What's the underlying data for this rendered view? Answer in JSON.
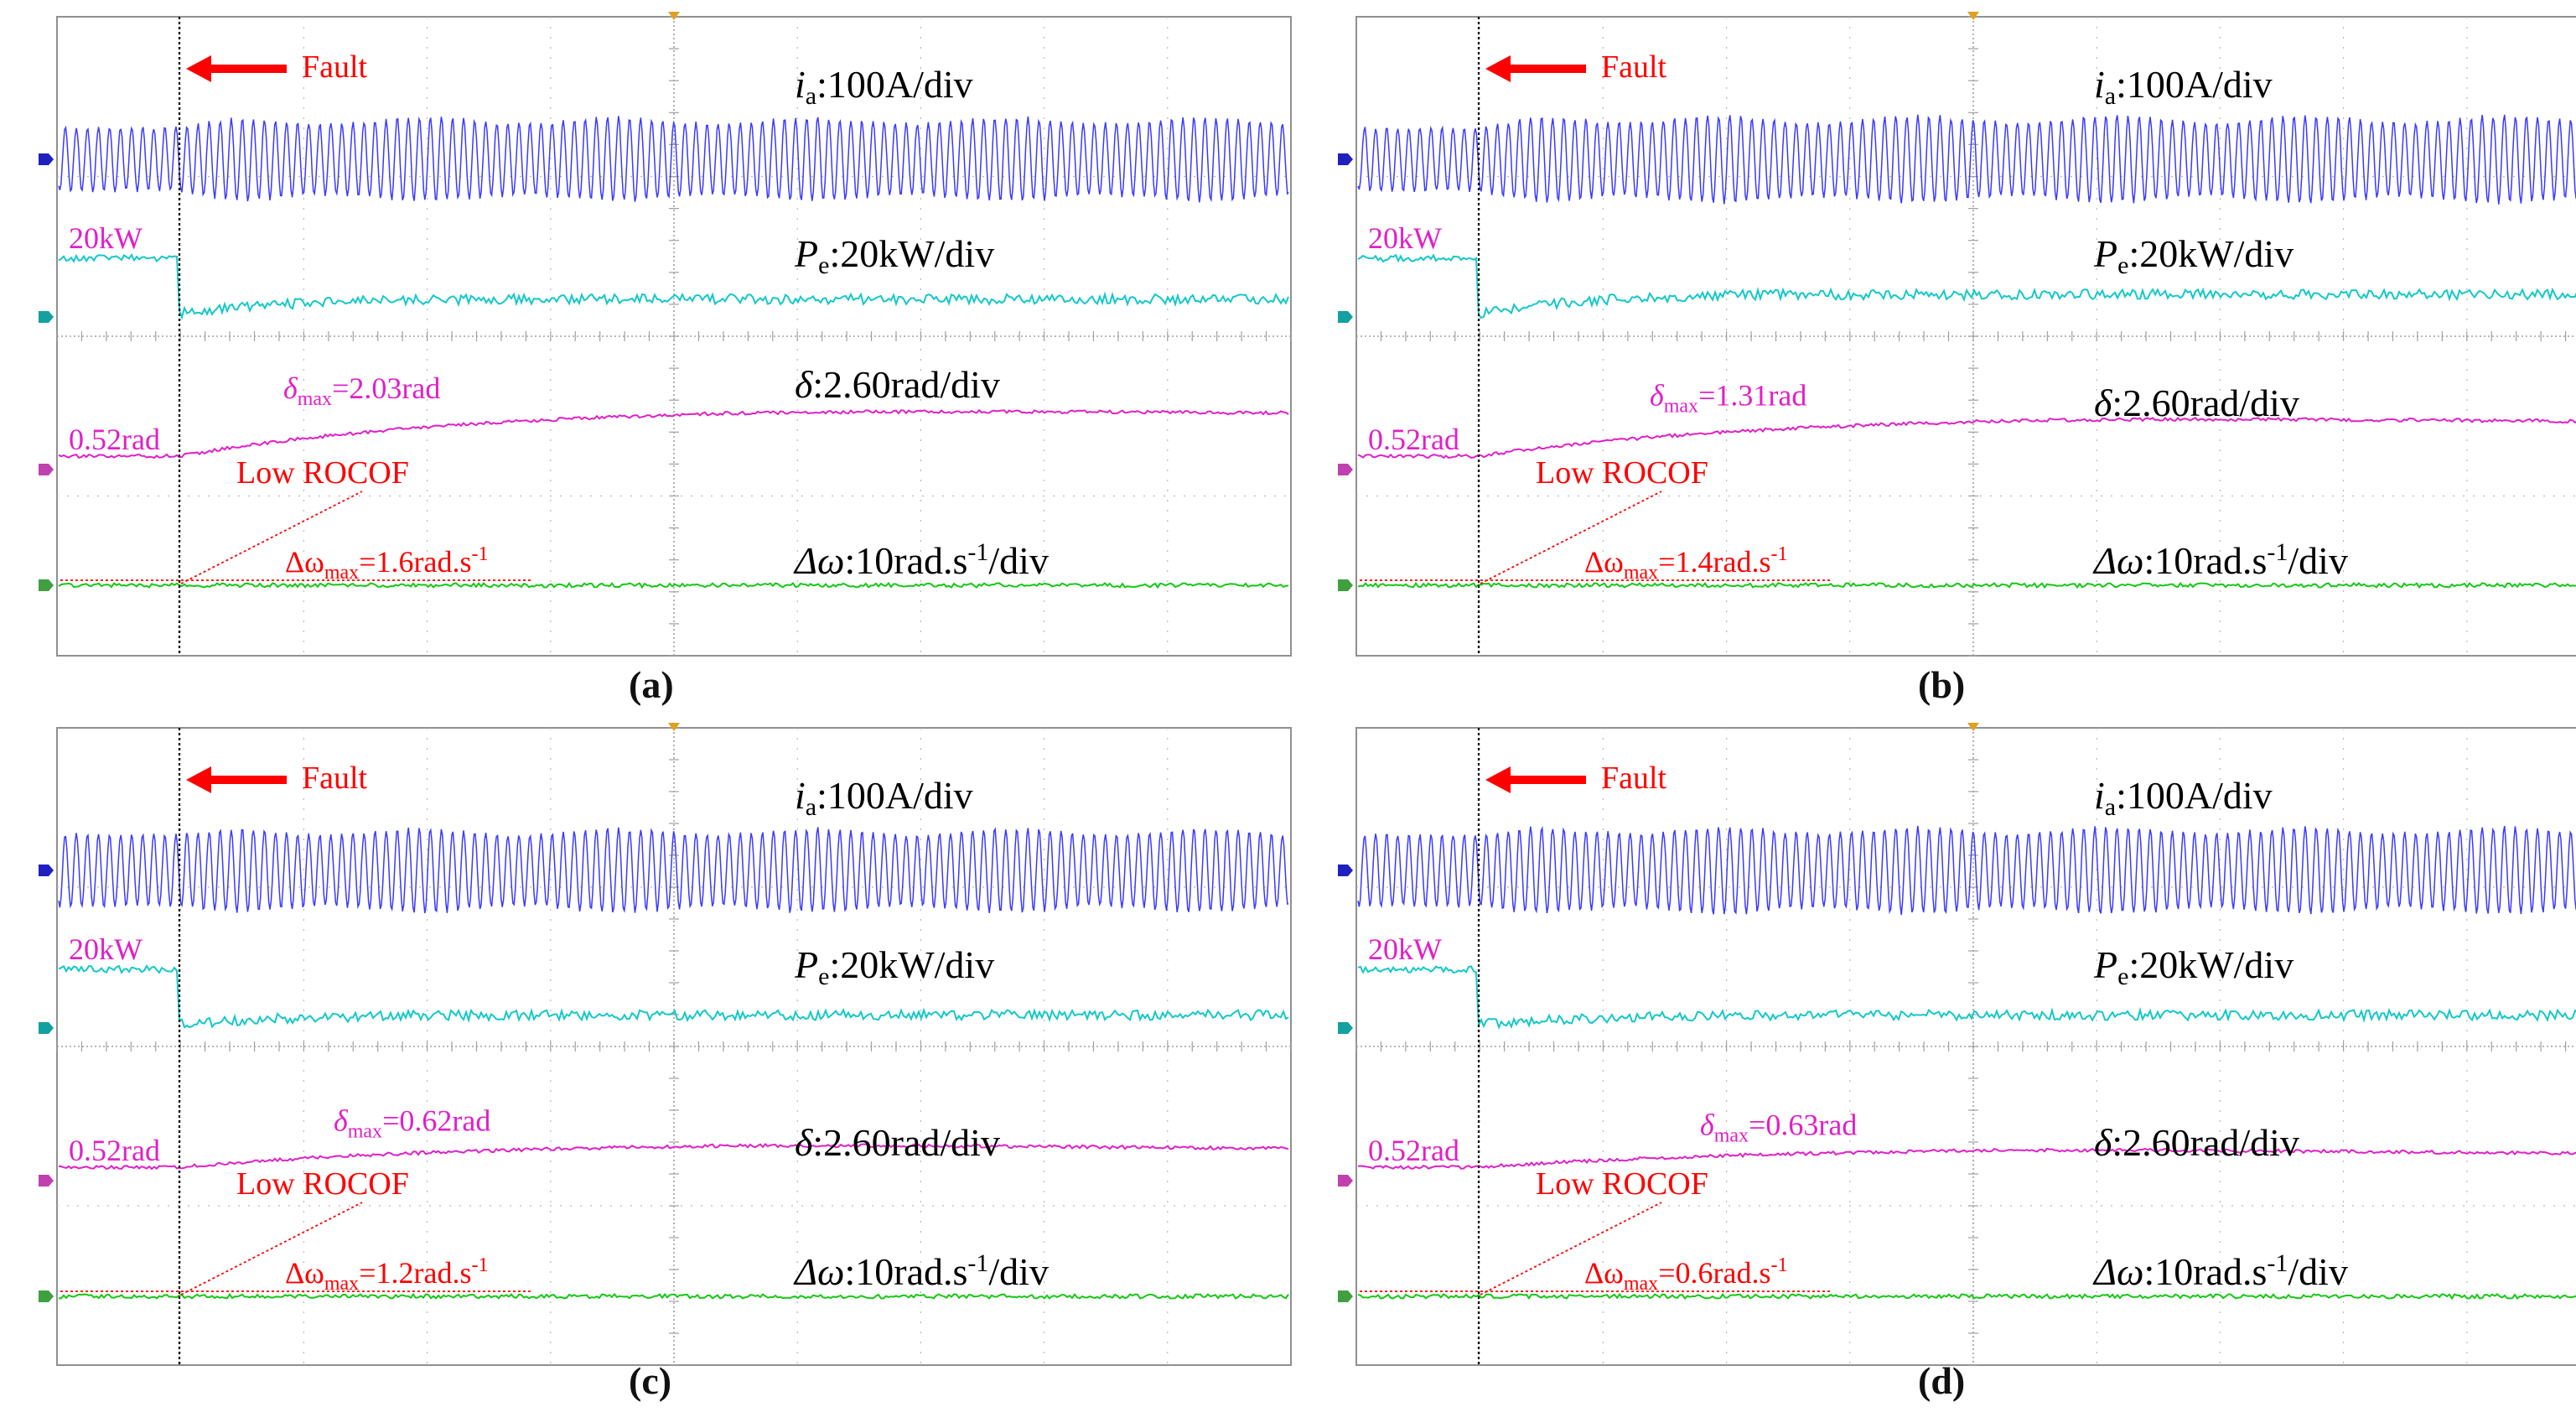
{
  "figure": {
    "fault_label": "Fault",
    "low_rocof_label": "Low ROCOF",
    "ia": {
      "sym": "i",
      "sub": "a",
      "txt": ":100A/div"
    },
    "pe": {
      "sym": "P",
      "sub": "e",
      "txt": ":20kW/div"
    },
    "delta": {
      "sym": "δ",
      "txt": ":2.60rad/div"
    },
    "omega": {
      "sym": "Δω",
      "txt1": ":10rad.s",
      "sup": "-1",
      "txt2": "/div"
    },
    "pe_init": "20kW",
    "delta_init": "0.52rad",
    "dmax_prefix": "δ",
    "dmax_sub": "max",
    "wmax_prefix": "Δω",
    "wmax_sub": "max",
    "wmax_unit": "rad.s",
    "wmax_sup": "-1"
  },
  "colors": {
    "ia": "#3a3aff",
    "pe": "#14c8c8",
    "delta": "#e020c8",
    "omega": "#14c814",
    "annotation": "#ff0000",
    "grid": "#b8b8b8",
    "trigger": "#e0a020"
  },
  "chart_data": [
    {
      "type": "line",
      "panel": "a",
      "caption": "(a)",
      "dmax_value": "=2.03rad",
      "wmax_value": "=1.6rad.s",
      "traces": {
        "pe_pre": 1.0,
        "pe_post_dip": 0.0,
        "pe_post": 0.2,
        "delta_pre": 0.0,
        "delta_peak": 0.2,
        "delta_rise_end": 0.3,
        "ia_pre_amp": 0.35,
        "ia_post_amp": 0.6
      }
    },
    {
      "type": "line",
      "panel": "b",
      "caption": "(b)",
      "dmax_value": "=1.31rad",
      "wmax_value": "=1.4rad.s",
      "traces": {
        "pe_pre": 1.0,
        "pe_post_dip": 0.0,
        "pe_post": 0.3,
        "delta_pre": 0.0,
        "delta_peak": 0.16,
        "delta_rise_end": 0.25,
        "ia_pre_amp": 0.35,
        "ia_post_amp": 0.65
      }
    },
    {
      "type": "line",
      "panel": "c",
      "caption": "(c)",
      "dmax_value": "=0.62rad",
      "wmax_value": "=1.2rad.s",
      "traces": {
        "pe_pre": 1.0,
        "pe_post_dip": 0.0,
        "pe_post": 0.1,
        "delta_pre": 0.0,
        "delta_peak": 0.05,
        "delta_rise_end": 0.15,
        "ia_pre_amp": 0.5,
        "ia_post_amp": 0.6
      }
    },
    {
      "type": "line",
      "panel": "d",
      "caption": "(d)",
      "dmax_value": "=0.63rad",
      "wmax_value": "=0.6rad.s",
      "traces": {
        "pe_pre": 1.0,
        "pe_post_dip": 0.0,
        "pe_post": 0.1,
        "delta_pre": 0.0,
        "delta_peak": 0.05,
        "delta_rise_end": 0.12,
        "ia_pre_amp": 0.5,
        "ia_post_amp": 0.65
      }
    }
  ]
}
